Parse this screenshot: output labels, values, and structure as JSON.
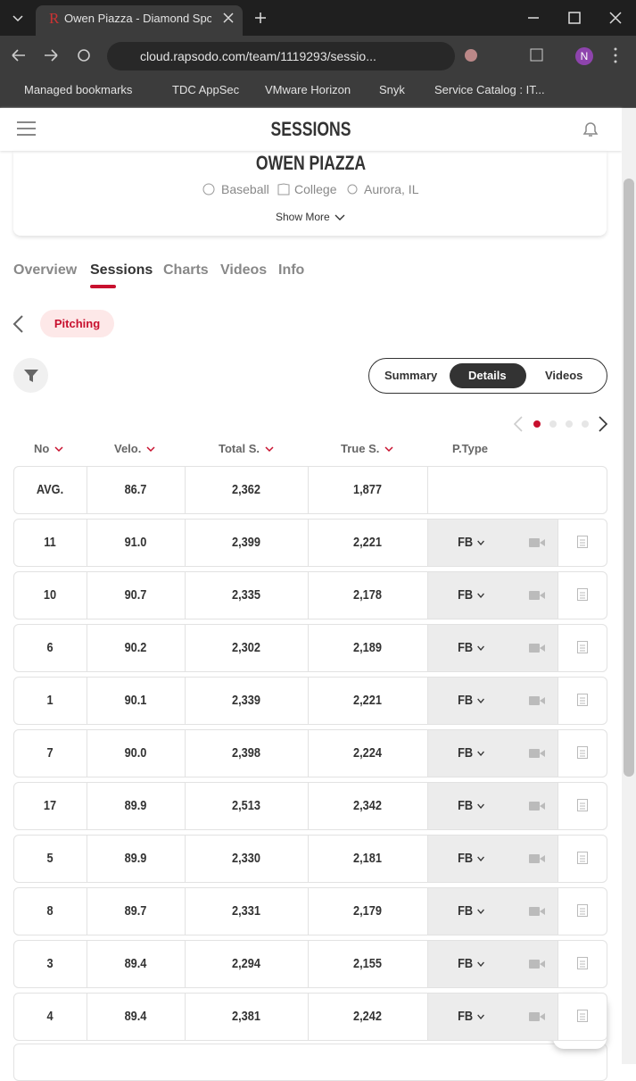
{
  "browser": {
    "tab_title": "Owen Piazza - Diamond Sports",
    "url": "cloud.rapsodo.com/team/1119293/sessio...",
    "profile_initial": "N",
    "bookmarks": [
      "Managed bookmarks",
      "TDC AppSec",
      "VMware Horizon",
      "Snyk",
      "Service Catalog : IT..."
    ]
  },
  "header": {
    "title": "SESSIONS"
  },
  "profile": {
    "name": "OWEN PIAZZA",
    "sport": "Baseball",
    "level": "College",
    "location": "Aurora, IL",
    "show_more": "Show More"
  },
  "tabs": [
    "Overview",
    "Sessions",
    "Charts",
    "Videos",
    "Info"
  ],
  "filter_chip": "Pitching",
  "view_toggle": [
    "Summary",
    "Details",
    "Videos"
  ],
  "table": {
    "headers": [
      "No",
      "Velo.",
      "Total S.",
      "True S.",
      "P.Type"
    ],
    "average": [
      "AVG.",
      "86.7",
      "2,362",
      "1,877"
    ],
    "rows": [
      [
        "11",
        "91.0",
        "2,399",
        "2,221",
        "FB"
      ],
      [
        "10",
        "90.7",
        "2,335",
        "2,178",
        "FB"
      ],
      [
        "6",
        "90.2",
        "2,302",
        "2,189",
        "FB"
      ],
      [
        "1",
        "90.1",
        "2,339",
        "2,221",
        "FB"
      ],
      [
        "7",
        "90.0",
        "2,398",
        "2,224",
        "FB"
      ],
      [
        "17",
        "89.9",
        "2,513",
        "2,342",
        "FB"
      ],
      [
        "5",
        "89.9",
        "2,330",
        "2,181",
        "FB"
      ],
      [
        "8",
        "89.7",
        "2,331",
        "2,179",
        "FB"
      ],
      [
        "3",
        "89.4",
        "2,294",
        "2,155",
        "FB"
      ],
      [
        "4",
        "89.4",
        "2,381",
        "2,242",
        "FB"
      ]
    ]
  },
  "help_icon": "?"
}
